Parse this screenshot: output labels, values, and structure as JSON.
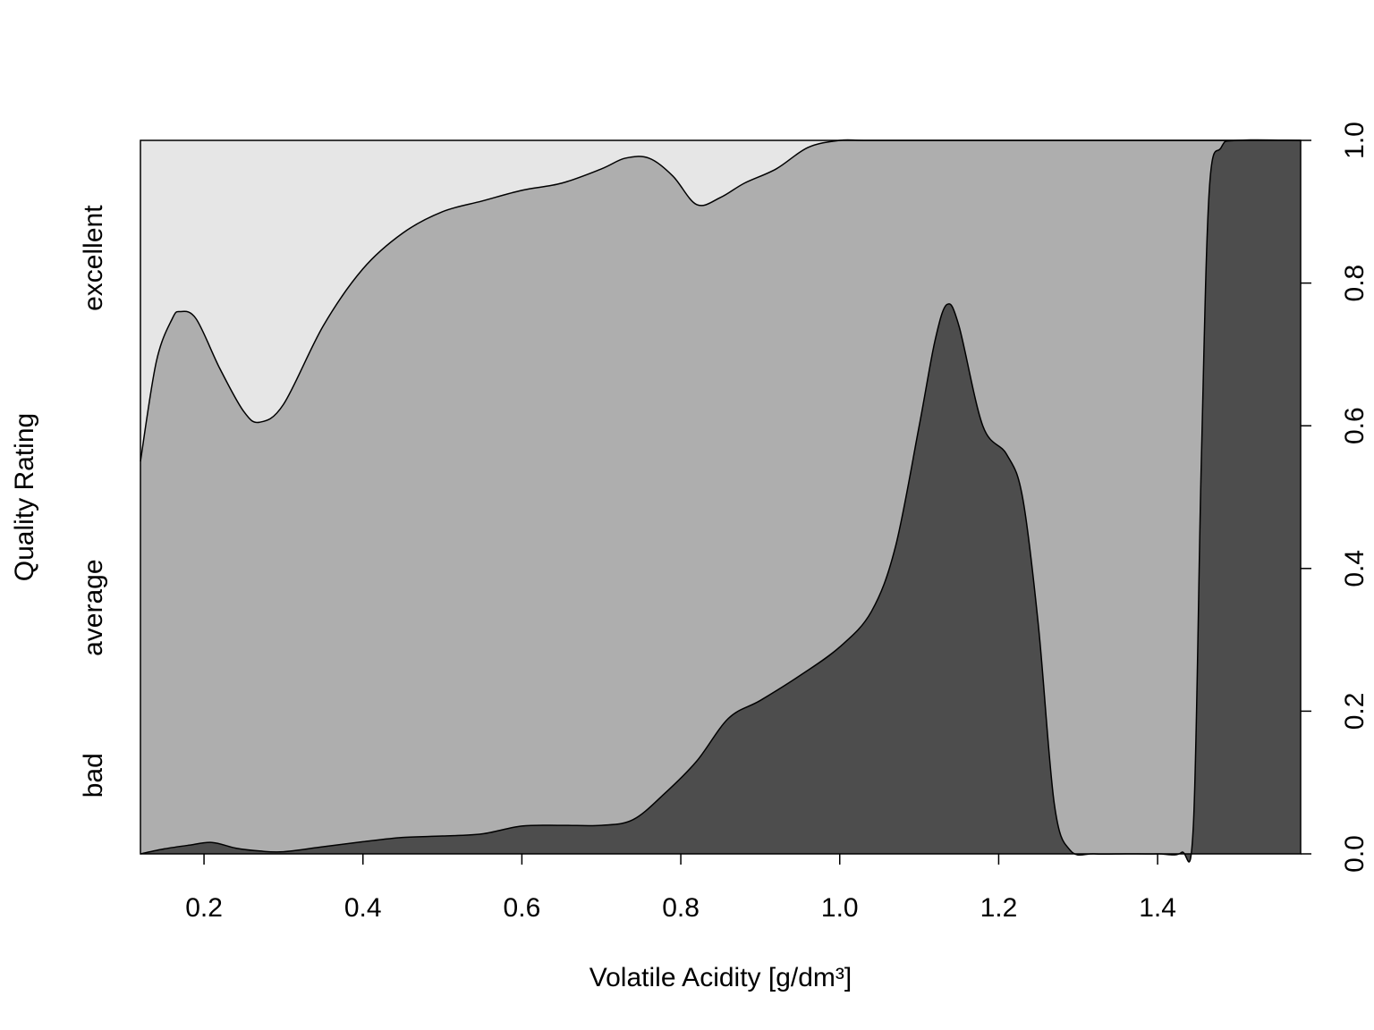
{
  "chart_data": {
    "type": "area",
    "subtype": "conditional-density-plot",
    "xlabel": "Volatile Acidity [g/dm³]",
    "ylabel": "Quality Rating",
    "xlim": [
      0.12,
      1.58
    ],
    "ylim": [
      0,
      1
    ],
    "x_ticks": [
      0.2,
      0.4,
      0.6,
      0.8,
      1.0,
      1.2,
      1.4
    ],
    "x_tick_labels": [
      "0.2",
      "0.4",
      "0.6",
      "0.8",
      "1.0",
      "1.2",
      "1.4"
    ],
    "right_ticks": [
      0,
      0.2,
      0.4,
      0.6,
      0.8,
      1.0
    ],
    "right_tick_labels": [
      "0.0",
      "0.2",
      "0.4",
      "0.6",
      "0.8",
      "1.0"
    ],
    "categories": [
      "bad",
      "average",
      "excellent"
    ],
    "colors": {
      "bad": "#4d4d4d",
      "average": "#aeaeae",
      "excellent": "#e6e6e6",
      "outline": "#000000"
    },
    "grid": false,
    "legend": "none",
    "category_label_position": "left",
    "boundaries": [
      {
        "between": [
          "bad",
          "average"
        ],
        "x": [
          0.12,
          0.15,
          0.18,
          0.21,
          0.24,
          0.27,
          0.3,
          0.35,
          0.4,
          0.45,
          0.5,
          0.55,
          0.6,
          0.65,
          0.7,
          0.74,
          0.78,
          0.82,
          0.86,
          0.9,
          0.95,
          1.0,
          1.04,
          1.07,
          1.1,
          1.12,
          1.135,
          1.15,
          1.18,
          1.21,
          1.23,
          1.25,
          1.27,
          1.29,
          1.32,
          1.36,
          1.4,
          1.43,
          1.445,
          1.455,
          1.465,
          1.48,
          1.5,
          1.58
        ],
        "values": [
          0.0,
          0.007,
          0.012,
          0.016,
          0.008,
          0.004,
          0.003,
          0.01,
          0.017,
          0.023,
          0.025,
          0.028,
          0.039,
          0.04,
          0.04,
          0.048,
          0.085,
          0.13,
          0.19,
          0.215,
          0.25,
          0.29,
          0.34,
          0.43,
          0.6,
          0.72,
          0.77,
          0.74,
          0.6,
          0.56,
          0.5,
          0.32,
          0.07,
          0.005,
          0.0,
          0.0,
          0.0,
          0.002,
          0.04,
          0.55,
          0.93,
          0.99,
          1.0,
          1.0
        ]
      },
      {
        "between": [
          "average",
          "excellent"
        ],
        "x": [
          0.12,
          0.14,
          0.16,
          0.17,
          0.19,
          0.22,
          0.25,
          0.27,
          0.3,
          0.35,
          0.4,
          0.45,
          0.5,
          0.55,
          0.6,
          0.65,
          0.7,
          0.73,
          0.76,
          0.79,
          0.82,
          0.85,
          0.88,
          0.92,
          0.96,
          1.0,
          1.03,
          1.1,
          1.58
        ],
        "values": [
          0.55,
          0.69,
          0.75,
          0.76,
          0.75,
          0.68,
          0.62,
          0.605,
          0.63,
          0.74,
          0.82,
          0.87,
          0.9,
          0.915,
          0.93,
          0.94,
          0.96,
          0.975,
          0.975,
          0.95,
          0.91,
          0.92,
          0.94,
          0.96,
          0.99,
          1.0,
          1.0,
          1.0,
          1.0
        ]
      }
    ]
  }
}
